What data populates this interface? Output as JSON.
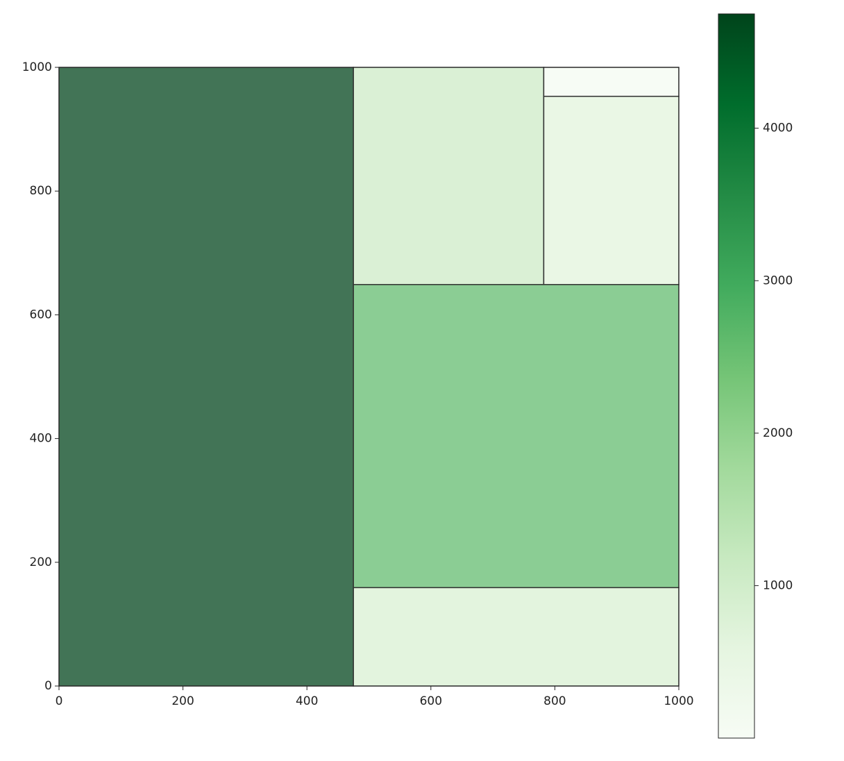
{
  "chart_data": {
    "type": "treemap",
    "values": [
      4750,
      835,
      2572,
      1078,
      663,
      102
    ],
    "xlim": [
      0,
      1000
    ],
    "ylim": [
      0,
      1000
    ],
    "xticks": [
      0,
      200,
      400,
      600,
      800,
      1000
    ],
    "yticks": [
      0,
      200,
      400,
      600,
      800,
      1000
    ],
    "colormap": [
      "#f7fcf5",
      "#e5f5e0",
      "#c7e9c0",
      "#a1d99b",
      "#74c476",
      "#41ab5d",
      "#238b45",
      "#006d2c",
      "#00441b"
    ],
    "alpha": 0.74,
    "edge_color": "#333333",
    "clim": [
      0,
      4750
    ],
    "cticks": [
      1000,
      2000,
      3000,
      4000
    ]
  }
}
